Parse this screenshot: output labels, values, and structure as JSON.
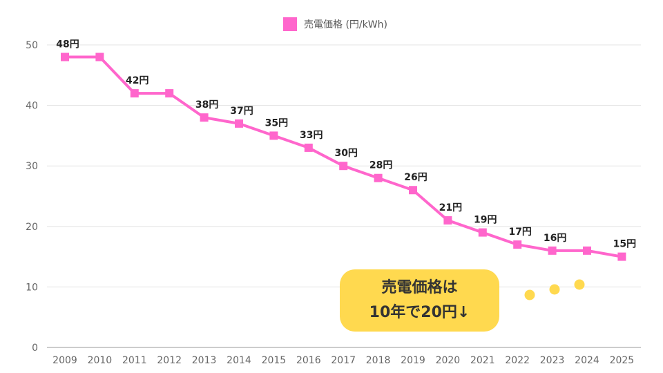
{
  "legend": {
    "label": "売電価格 (円/kWh)",
    "color": "#ff66cc"
  },
  "callout": {
    "line1": "売電価格は",
    "line2": "10年で20円↓",
    "color": "#ffd94f"
  },
  "dots_color": "#ffd94f",
  "chart_data": {
    "type": "line",
    "categories": [
      "2009",
      "2010",
      "2011",
      "2012",
      "2013",
      "2014",
      "2015",
      "2016",
      "2017",
      "2018",
      "2019",
      "2020",
      "2021",
      "2022",
      "2023",
      "2024",
      "2025"
    ],
    "series": [
      {
        "name": "売電価格 (円/kWh)",
        "values": [
          48,
          48,
          42,
          42,
          38,
          37,
          35,
          33,
          30,
          28,
          26,
          21,
          19,
          17,
          16,
          16,
          15
        ],
        "color": "#ff66cc"
      }
    ],
    "data_labels": [
      "48円",
      "",
      "42円",
      "",
      "38円",
      "37円",
      "35円",
      "33円",
      "30円",
      "28円",
      "26円",
      "21円",
      "19円",
      "17円",
      "16円",
      "",
      "15円"
    ],
    "ylim": [
      0,
      50
    ],
    "yticks": [
      0,
      10,
      20,
      30,
      40,
      50
    ],
    "grid": true,
    "legend_position": "top-center"
  }
}
